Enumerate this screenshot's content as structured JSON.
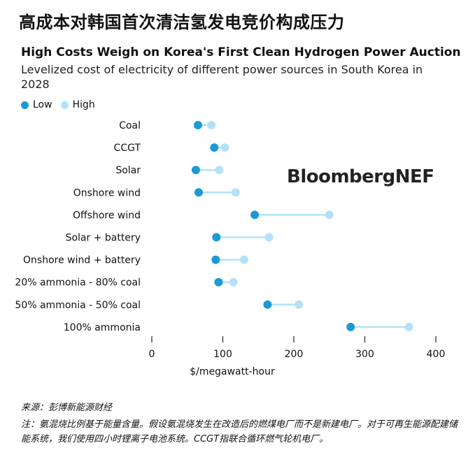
{
  "page_title": "高成本对韩国首次清洁氢发电竞价构成压力",
  "source": "来源：彭博新能源财经",
  "note": "注：氨混烧比例基于能量含量。假设氨混烧发生在改造后的燃煤电厂而不是新建电厂。对于可再生能源配建储能系统，我们使用四小时锂离子电池系统。CCGT指联合循环燃气轮机电厂。",
  "watermark": "BloombergNEF",
  "colors": {
    "low": "#1a9ad6",
    "high": "#b3e2f7",
    "axis": "#333333"
  },
  "chart_data": {
    "type": "dumbbell",
    "title": "High Costs Weigh on Korea's First Clean Hydrogen Power Auction",
    "subtitle": "Levelized cost of electricity of different power sources in South Korea in 2028",
    "xlabel": "$/megawatt-hour",
    "xlim": [
      0,
      400
    ],
    "xticks": [
      0,
      100,
      200,
      300,
      400
    ],
    "legend": [
      {
        "name": "Low",
        "color_key": "low"
      },
      {
        "name": "High",
        "color_key": "high"
      }
    ],
    "categories": [
      "Coal",
      "CCGT",
      "Solar",
      "Onshore wind",
      "Offshore wind",
      "Solar + battery",
      "Onshore wind + battery",
      "20% ammonia - 80% coal",
      "50% ammonia - 50% coal",
      "100% ammonia"
    ],
    "series": [
      {
        "name": "Low",
        "values": [
          65,
          88,
          62,
          66,
          145,
          91,
          90,
          94,
          163,
          280
        ]
      },
      {
        "name": "High",
        "values": [
          84,
          103,
          95,
          118,
          250,
          165,
          130,
          115,
          207,
          362
        ]
      }
    ]
  }
}
